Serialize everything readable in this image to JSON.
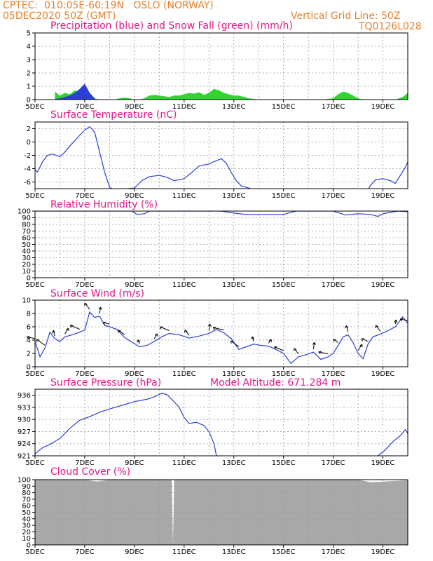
{
  "header": {
    "source": "CPTEC:",
    "coords": "010:05E-60:19N",
    "location": "OSLO (NORWAY)",
    "run": "05DEC2020 50Z (GMT)",
    "grid_note": "Vertical Grid Line: 50Z",
    "code": "TQ0126L028"
  },
  "x_tick_labels": [
    "5DEC",
    "7DEC",
    "9DEC",
    "11DEC",
    "13DEC",
    "15DEC",
    "17DEC",
    "19DEC"
  ],
  "panels": [
    {
      "id": "precip",
      "title": "Precipitation (blue) and Snow Fall (green) (mm/h)"
    },
    {
      "id": "temp",
      "title": "Surface Temperature (nC)"
    },
    {
      "id": "rh",
      "title": "Relative Humidity (%)"
    },
    {
      "id": "wind",
      "title": "Surface Wind (m/s)"
    },
    {
      "id": "pres",
      "title": "Surface Pressure (hPa)",
      "note": "Model Altitude: 671.284 m"
    },
    {
      "id": "cloud",
      "title": "Cloud Cover (%)"
    }
  ],
  "colors": {
    "header": "#e8802c",
    "title": "#e0188c",
    "line": "#2a3fd6",
    "snow": "#2fd62f",
    "cloud": "#a9a9a9"
  },
  "chart_data": [
    {
      "type": "area",
      "id": "precip",
      "ylim": [
        0,
        5
      ],
      "yticks": [
        0,
        1,
        2,
        3,
        4,
        5
      ],
      "xlim": [
        5,
        20
      ],
      "series": [
        {
          "name": "Precipitation",
          "x": [
            5.8,
            6.0,
            6.2,
            6.4,
            6.6,
            6.8,
            7.0,
            7.2,
            7.4
          ],
          "y": [
            0.05,
            0.1,
            0.2,
            0.3,
            0.5,
            0.8,
            1.2,
            0.5,
            0.1
          ]
        },
        {
          "name": "Snow Fall",
          "x": [
            5.8,
            6.0,
            6.2,
            6.4,
            6.6,
            6.8,
            7.0,
            7.2,
            7.4,
            7.6,
            7.8,
            8.0,
            8.2,
            8.4,
            8.6,
            8.8,
            9.0,
            9.2,
            9.4,
            9.6,
            9.8,
            10.0,
            10.2,
            10.4,
            10.6,
            10.8,
            11.0,
            11.2,
            11.4,
            11.6,
            11.8,
            12.0,
            12.2,
            12.4,
            12.6,
            12.8,
            13.0,
            13.2,
            13.4,
            13.6,
            13.8,
            14.0,
            14.5,
            15.0,
            15.5,
            16.0,
            16.5,
            17.0,
            17.2,
            17.4,
            17.6,
            17.8,
            18.0,
            18.2,
            18.4,
            18.6,
            18.8,
            19.0,
            19.5,
            19.8,
            20.0
          ],
          "y": [
            0.6,
            0.3,
            0.5,
            0.4,
            0.7,
            0.5,
            0.8,
            0.3,
            0.1,
            0,
            0,
            0,
            0,
            0.1,
            0.15,
            0.1,
            0,
            0,
            0.1,
            0.3,
            0.35,
            0.3,
            0.25,
            0.2,
            0.3,
            0.3,
            0.4,
            0.5,
            0.45,
            0.55,
            0.35,
            0.5,
            0.8,
            0.7,
            0.5,
            0.4,
            0.3,
            0.3,
            0.2,
            0.1,
            0.05,
            0,
            0,
            0,
            0,
            0,
            0,
            0.1,
            0.4,
            0.6,
            0.5,
            0.3,
            0.1,
            0,
            0,
            0,
            0,
            0,
            0,
            0.2,
            0.5
          ]
        }
      ]
    },
    {
      "type": "line",
      "id": "temp",
      "ylim": [
        -7,
        3
      ],
      "yticks": [
        -6,
        -4,
        -2,
        0,
        2
      ],
      "xlim": [
        5,
        20
      ],
      "series": [
        {
          "name": "Temperature",
          "x": [
            5.0,
            5.1,
            5.3,
            5.5,
            5.7,
            6.0,
            6.2,
            6.4,
            6.6,
            6.8,
            7.0,
            7.2,
            7.4,
            7.6,
            7.8,
            8.0,
            8.2,
            9.0,
            9.3,
            9.6,
            10.0,
            10.3,
            10.6,
            11.0,
            11.3,
            11.6,
            12.0,
            12.3,
            12.5,
            12.7,
            12.9,
            13.1,
            13.3,
            13.6,
            13.8,
            18.4,
            18.5,
            18.7,
            19.0,
            19.3,
            19.5,
            19.7,
            19.9,
            20.0
          ],
          "y": [
            -4.2,
            -4.5,
            -3.0,
            -2.0,
            -1.8,
            -2.2,
            -1.5,
            -0.6,
            0.2,
            1.0,
            1.8,
            2.3,
            1.5,
            -1.5,
            -4.5,
            -6.8,
            -7.2,
            -6.9,
            -5.8,
            -5.2,
            -5.0,
            -5.3,
            -5.8,
            -5.5,
            -4.6,
            -3.6,
            -3.3,
            -2.8,
            -2.5,
            -3.2,
            -4.6,
            -5.8,
            -6.6,
            -6.9,
            -7.2,
            -7.2,
            -6.5,
            -5.7,
            -5.5,
            -5.8,
            -6.2,
            -5.0,
            -3.8,
            -3.0
          ]
        }
      ]
    },
    {
      "type": "line",
      "id": "rh",
      "ylim": [
        0,
        100
      ],
      "yticks": [
        0,
        10,
        20,
        30,
        40,
        50,
        60,
        70,
        80,
        90,
        100
      ],
      "xlim": [
        5,
        20
      ],
      "series": [
        {
          "name": "Relative Humidity",
          "x": [
            5.0,
            5.5,
            6.0,
            6.5,
            7.0,
            7.5,
            8.0,
            8.5,
            8.9,
            9.1,
            9.4,
            9.6,
            10.0,
            10.5,
            11.0,
            11.5,
            12.0,
            12.5,
            13.0,
            13.5,
            14.0,
            14.5,
            15.0,
            15.5,
            16.0,
            16.5,
            17.0,
            17.5,
            18.0,
            18.5,
            18.8,
            19.0,
            19.3,
            19.6,
            20.0
          ],
          "y": [
            100,
            100,
            100,
            100,
            100,
            100,
            100,
            100,
            100,
            95,
            96,
            100,
            100,
            100,
            100,
            100,
            100,
            100,
            97,
            95,
            95,
            95,
            95,
            100,
            100,
            100,
            100,
            94,
            96,
            95,
            92,
            96,
            98,
            100,
            99
          ]
        }
      ]
    },
    {
      "type": "line",
      "id": "wind",
      "ylim": [
        0,
        10
      ],
      "yticks": [
        0,
        2,
        4,
        6,
        8,
        10
      ],
      "xlim": [
        5,
        20
      ],
      "series": [
        {
          "name": "Wind Speed",
          "x": [
            5.0,
            5.2,
            5.4,
            5.6,
            5.8,
            6.0,
            6.2,
            6.5,
            6.8,
            7.0,
            7.2,
            7.4,
            7.6,
            7.8,
            8.0,
            8.3,
            8.6,
            8.9,
            9.2,
            9.5,
            9.8,
            10.1,
            10.4,
            10.8,
            11.2,
            11.6,
            12.0,
            12.3,
            12.6,
            12.9,
            13.2,
            13.5,
            13.8,
            14.1,
            14.4,
            14.7,
            15.0,
            15.3,
            15.6,
            15.9,
            16.2,
            16.5,
            16.8,
            17.0,
            17.2,
            17.4,
            17.6,
            17.8,
            18.0,
            18.2,
            18.4,
            18.6,
            18.9,
            19.2,
            19.5,
            19.8,
            20.0
          ],
          "y": [
            3.8,
            1.5,
            2.8,
            5.2,
            4.2,
            3.8,
            4.5,
            4.8,
            5.2,
            5.5,
            8.2,
            7.4,
            7.6,
            6.2,
            6.0,
            5.6,
            4.4,
            3.7,
            3.0,
            3.2,
            3.8,
            4.5,
            5.0,
            4.8,
            4.3,
            4.6,
            5.0,
            5.6,
            5.1,
            4.2,
            2.6,
            3.0,
            3.4,
            3.2,
            3.1,
            2.6,
            2.0,
            0.5,
            1.5,
            1.8,
            2.2,
            1.1,
            1.5,
            2.0,
            3.2,
            4.5,
            4.8,
            3.6,
            2.0,
            1.2,
            3.4,
            4.5,
            4.9,
            5.4,
            6.0,
            7.5,
            6.5
          ]
        }
      ]
    },
    {
      "type": "line",
      "id": "pres",
      "ylim": [
        921,
        937.5
      ],
      "yticks": [
        921,
        924,
        927,
        930,
        933,
        936
      ],
      "xlim": [
        5,
        20
      ],
      "series": [
        {
          "name": "Pressure",
          "x": [
            5.0,
            5.3,
            5.6,
            6.0,
            6.4,
            6.8,
            7.2,
            7.6,
            8.0,
            8.5,
            9.0,
            9.5,
            9.8,
            10.1,
            10.3,
            10.5,
            10.8,
            11.0,
            11.2,
            11.5,
            11.8,
            12.0,
            12.2,
            12.3,
            18.8,
            19.1,
            19.4,
            19.7,
            19.9,
            20.0
          ],
          "y": [
            921.5,
            923.0,
            923.8,
            925.3,
            927.8,
            929.8,
            930.7,
            931.8,
            932.6,
            933.5,
            934.4,
            935.0,
            935.6,
            936.5,
            936.2,
            935.0,
            933.0,
            930.5,
            929.0,
            929.3,
            928.5,
            927.0,
            924.0,
            921.0,
            921.0,
            922.5,
            924.5,
            926.0,
            927.5,
            926.5
          ]
        }
      ]
    },
    {
      "type": "area",
      "id": "cloud",
      "ylim": [
        0,
        100
      ],
      "yticks": [
        0,
        10,
        20,
        30,
        40,
        50,
        60,
        70,
        80,
        90,
        100
      ],
      "xlim": [
        5,
        20
      ],
      "series": [
        {
          "name": "Cloud Cover",
          "x": [
            5.0,
            7.0,
            7.5,
            8.0,
            8.5,
            10.5,
            10.55,
            10.6,
            13.0,
            18.0,
            18.5,
            19.0,
            19.5,
            20.0
          ],
          "y": [
            100,
            100,
            97,
            100,
            100,
            100,
            0,
            100,
            100,
            100,
            96,
            97,
            98,
            99
          ]
        }
      ]
    }
  ]
}
